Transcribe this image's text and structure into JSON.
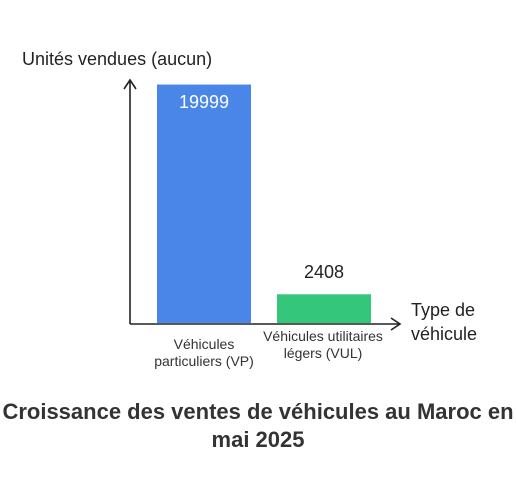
{
  "chart_data": {
    "type": "bar",
    "title": "Croissance des ventes de véhicules au Maroc en mai 2025",
    "ylabel": "Unités vendues (aucun)",
    "xlabel": "Type de véhicule",
    "categories": [
      "Véhicules particuliers (VP)",
      "Véhicules utilitaires légers (VUL)"
    ],
    "values": [
      19999,
      2408
    ],
    "value_labels": [
      "19999",
      "2408"
    ],
    "colors": [
      "#4a86e8",
      "#34c77b"
    ],
    "ylim": [
      0,
      20800
    ],
    "grid": false,
    "legend": "none"
  }
}
